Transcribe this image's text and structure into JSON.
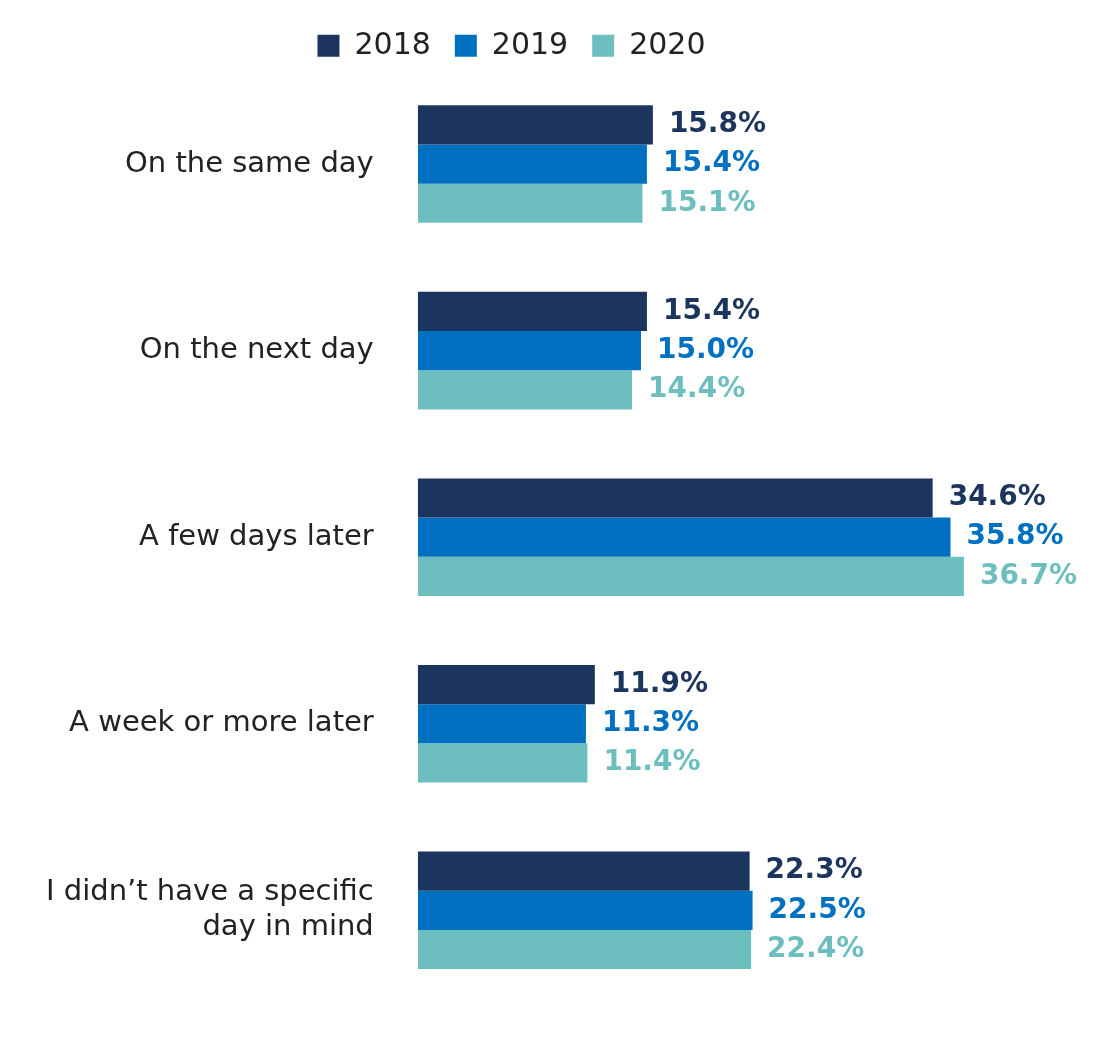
{
  "chart_data": {
    "type": "bar",
    "orientation": "horizontal",
    "categories": [
      "On the same day",
      "On the next day",
      "A few days later",
      "A week or more later",
      "I didn’t have a specific day in mind"
    ],
    "series": [
      {
        "name": "2018",
        "color": "#1c355e",
        "values": [
          15.8,
          15.4,
          34.6,
          11.9,
          22.3
        ],
        "value_labels": [
          "15.8%",
          "15.4%",
          "34.6%",
          "11.9%",
          "22.3%"
        ]
      },
      {
        "name": "2019",
        "color": "#0070c0",
        "values": [
          15.4,
          15.0,
          35.8,
          11.3,
          22.5
        ],
        "value_labels": [
          "15.4%",
          "15.0%",
          "35.8%",
          "11.3%",
          "22.5%"
        ]
      },
      {
        "name": "2020",
        "color": "#6dbfbf",
        "values": [
          15.1,
          14.4,
          36.7,
          11.4,
          22.4
        ],
        "value_labels": [
          "15.1%",
          "14.4%",
          "36.7%",
          "11.4%",
          "22.4%"
        ]
      }
    ],
    "legend": "top",
    "tick_labels": "y"
  }
}
